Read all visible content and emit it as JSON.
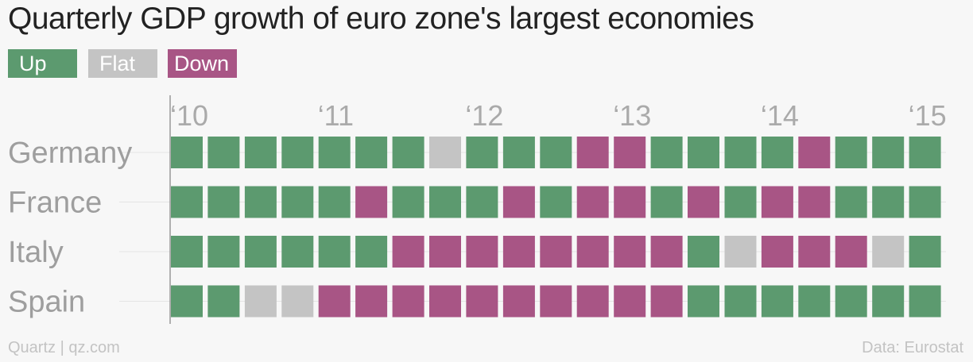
{
  "title": "Quarterly GDP growth of euro zone's largest economies",
  "legend": [
    {
      "key": "U",
      "label": "Up",
      "color": "#5c9a6f"
    },
    {
      "key": "F",
      "label": "Flat",
      "color": "#c4c4c4"
    },
    {
      "key": "D",
      "label": "Down",
      "color": "#a85585"
    }
  ],
  "footer": {
    "credit": "Quartz | qz.com",
    "source": "Data: Eurostat"
  },
  "chart_data": {
    "type": "heatmap",
    "x_ticks": [
      "‘10",
      "‘11",
      "‘12",
      "‘13",
      "‘14",
      "‘15"
    ],
    "rows": [
      {
        "name": "Germany",
        "values": [
          "U",
          "U",
          "U",
          "U",
          "U",
          "U",
          "U",
          "F",
          "U",
          "U",
          "U",
          "D",
          "D",
          "U",
          "U",
          "U",
          "U",
          "D",
          "U",
          "U",
          "U"
        ]
      },
      {
        "name": "France",
        "values": [
          "U",
          "U",
          "U",
          "U",
          "U",
          "D",
          "U",
          "U",
          "U",
          "D",
          "U",
          "D",
          "D",
          "U",
          "D",
          "U",
          "D",
          "D",
          "U",
          "U",
          "U"
        ]
      },
      {
        "name": "Italy",
        "values": [
          "U",
          "U",
          "U",
          "U",
          "U",
          "U",
          "D",
          "D",
          "D",
          "D",
          "D",
          "D",
          "D",
          "D",
          "U",
          "F",
          "D",
          "D",
          "D",
          "F",
          "U"
        ]
      },
      {
        "name": "Spain",
        "values": [
          "U",
          "U",
          "F",
          "F",
          "D",
          "D",
          "D",
          "D",
          "D",
          "D",
          "D",
          "D",
          "D",
          "D",
          "U",
          "U",
          "U",
          "U",
          "U",
          "U",
          "U"
        ]
      }
    ]
  }
}
